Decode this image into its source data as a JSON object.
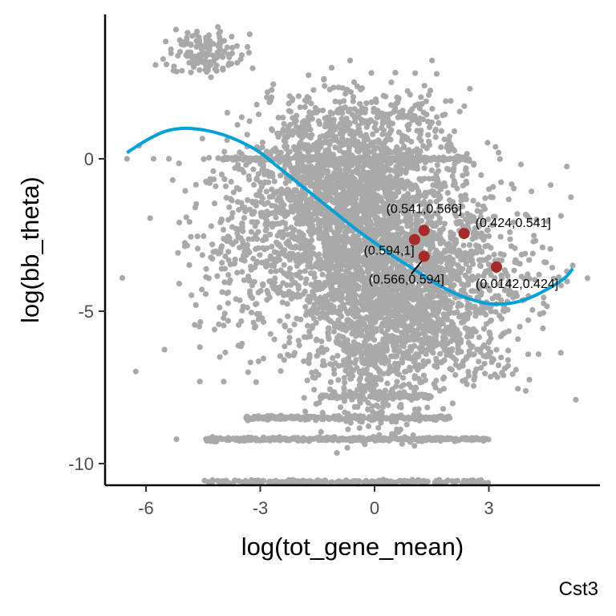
{
  "chart_data": {
    "type": "scatter",
    "title": "",
    "caption": "Cst3",
    "xlabel": "log(tot_gene_mean)",
    "ylabel": "log(bb_theta)",
    "xlim": [
      -7.0,
      5.9
    ],
    "ylim": [
      -10.7,
      4.9
    ],
    "x_ticks": [
      -6,
      -3,
      0,
      3
    ],
    "x_tick_labels": [
      "-6",
      "-3",
      "0",
      "3"
    ],
    "y_ticks": [
      -10,
      -5,
      0
    ],
    "y_tick_labels": [
      "-10",
      "-5",
      "0"
    ],
    "grid": false,
    "legend": "none",
    "colors": {
      "points": "#a9a9a9",
      "fit": "#00a0d9",
      "highlight": "#a52a2a"
    },
    "fit_curve": {
      "x": [
        -6.5,
        -6.0,
        -5.5,
        -5.0,
        -4.5,
        -4.0,
        -3.5,
        -3.0,
        -2.5,
        -2.0,
        -1.5,
        -1.0,
        -0.5,
        0.0,
        0.5,
        1.0,
        1.5,
        2.0,
        2.5,
        3.0,
        3.5,
        4.0,
        4.5,
        5.0,
        5.2
      ],
      "y": [
        0.2,
        0.6,
        0.9,
        1.0,
        0.95,
        0.8,
        0.55,
        0.2,
        -0.3,
        -0.8,
        -1.3,
        -1.8,
        -2.3,
        -2.75,
        -3.2,
        -3.6,
        -4.0,
        -4.35,
        -4.6,
        -4.75,
        -4.75,
        -4.6,
        -4.3,
        -3.9,
        -3.6
      ]
    },
    "highlighted_points": [
      {
        "x": 1.3,
        "y": -2.35,
        "label": "(0.541,0.566]"
      },
      {
        "x": 2.35,
        "y": -2.45,
        "label": "(0.424,0.541]"
      },
      {
        "x": 1.05,
        "y": -2.65,
        "label": ""
      },
      {
        "x": 1.3,
        "y": -3.2,
        "label": "(0.594,1]"
      },
      {
        "x": 1.3,
        "y": -3.2,
        "label": "(0.566,0.594]"
      },
      {
        "x": 3.2,
        "y": -3.55,
        "label": "(0.0142,0.424]"
      }
    ],
    "point_clusters": [
      {
        "x": 0.0,
        "y": -2.5,
        "sx": 1.6,
        "sy": 1.6,
        "n": 1800
      },
      {
        "x": -1.0,
        "y": -0.8,
        "sx": 1.3,
        "sy": 1.1,
        "n": 900
      },
      {
        "x": 0.3,
        "y": -4.8,
        "sx": 1.0,
        "sy": 1.2,
        "n": 700
      },
      {
        "x": 0.0,
        "y": -7.2,
        "sx": 0.8,
        "sy": 0.9,
        "n": 300
      },
      {
        "x": -4.4,
        "y": 3.5,
        "sx": 0.5,
        "sy": 0.35,
        "n": 140
      },
      {
        "x": -1.5,
        "y": 1.2,
        "sx": 0.9,
        "sy": 0.6,
        "n": 120
      },
      {
        "x": 0.5,
        "y": 1.3,
        "sx": 0.9,
        "sy": 0.7,
        "n": 140
      },
      {
        "x": 2.5,
        "y": -4.0,
        "sx": 1.0,
        "sy": 0.8,
        "n": 220
      },
      {
        "x": -3.2,
        "y": -3.5,
        "sx": 1.0,
        "sy": 1.6,
        "n": 200
      },
      {
        "x": 1.5,
        "y": -5.8,
        "sx": 1.2,
        "sy": 0.8,
        "n": 200
      }
    ],
    "point_bands": [
      {
        "y": 0.0,
        "x_from": -4.0,
        "x_to": 2.5,
        "n": 260
      },
      {
        "y": -7.8,
        "x_from": -1.5,
        "x_to": 1.5,
        "n": 100
      },
      {
        "y": -8.5,
        "x_from": -3.5,
        "x_to": 2.0,
        "n": 260
      },
      {
        "y": -9.2,
        "x_from": -4.5,
        "x_to": 3.0,
        "n": 380
      },
      {
        "y": -10.6,
        "x_from": -4.5,
        "x_to": 3.0,
        "n": 200
      }
    ],
    "point_diagonal": {
      "x_from": -2.0,
      "x_to": 3.5,
      "y_from": -3.0,
      "y_to": -7.2,
      "spread": 0.3,
      "n": 260
    },
    "point_scatter_extra": [
      {
        "x": -6.5,
        "y": 0.0
      },
      {
        "x": -5.8,
        "y": 0.0
      },
      {
        "x": -5.4,
        "y": 0.0
      },
      {
        "x": -4.6,
        "y": -5.5
      },
      {
        "x": -4.2,
        "y": -5.6
      },
      {
        "x": -5.2,
        "y": -9.2
      },
      {
        "x": 4.5,
        "y": -3.4
      },
      {
        "x": 5.2,
        "y": -3.5
      },
      {
        "x": 3.5,
        "y": -6.6
      },
      {
        "x": 3.0,
        "y": -6.0
      },
      {
        "x": 2.5,
        "y": 2.3
      },
      {
        "x": 2.0,
        "y": 1.9
      }
    ]
  }
}
